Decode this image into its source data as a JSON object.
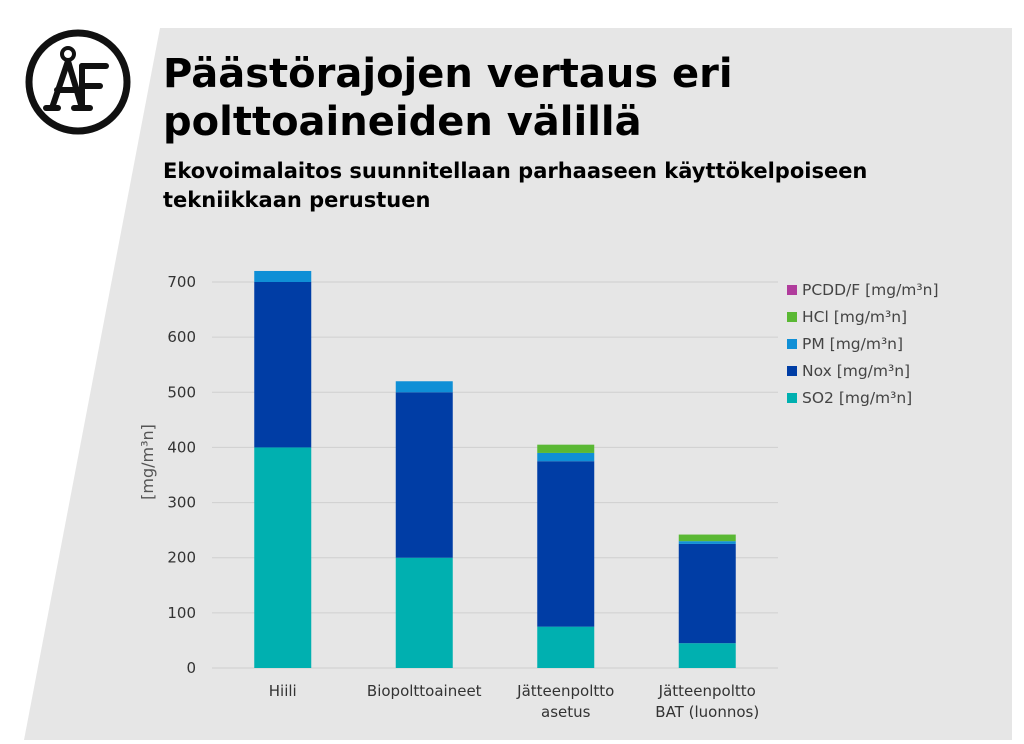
{
  "slide": {
    "title_line1": "Päästörajojen vertaus eri",
    "title_line2": "polttoaineiden välillä",
    "subtitle_line1": "Ekovoimalaitos suunnitellaan parhaaseen käyttökelpoiseen",
    "subtitle_line2": "tekniikkaan perustuen",
    "logo_text": "ÅF"
  },
  "colors": {
    "background": "#e6e6e6",
    "grid": "#cfcfcf",
    "text": "#333333"
  },
  "chart_data": {
    "type": "bar",
    "stacked": true,
    "categories": [
      [
        "Hiili"
      ],
      [
        "Biopolttoaineet"
      ],
      [
        "Jätteenpoltto",
        "asetus"
      ],
      [
        "Jätteenpoltto",
        "BAT (luonnos)"
      ]
    ],
    "series": [
      {
        "name": "SO2 [mg/m³n]",
        "color": "#00b0b0",
        "values": [
          400,
          200,
          75,
          45
        ]
      },
      {
        "name": "Nox [mg/m³n]",
        "color": "#003da5",
        "values": [
          300,
          300,
          300,
          180
        ]
      },
      {
        "name": "PM [mg/m³n]",
        "color": "#0f8fd6",
        "values": [
          20,
          20,
          15,
          5
        ]
      },
      {
        "name": "HCl [mg/m³n]",
        "color": "#5ab834",
        "values": [
          0,
          0,
          15,
          12
        ]
      },
      {
        "name": "PCDD/F [mg/m³n]",
        "color": "#b03c9c",
        "values": [
          0,
          0,
          0,
          0
        ]
      }
    ],
    "legend_order": [
      4,
      3,
      2,
      1,
      0
    ],
    "ylabel": "[mg/m³n]",
    "ylim": [
      0,
      700
    ],
    "yticks": [
      0,
      100,
      200,
      300,
      400,
      500,
      600,
      700
    ],
    "grid": true,
    "legend_position": "right"
  }
}
